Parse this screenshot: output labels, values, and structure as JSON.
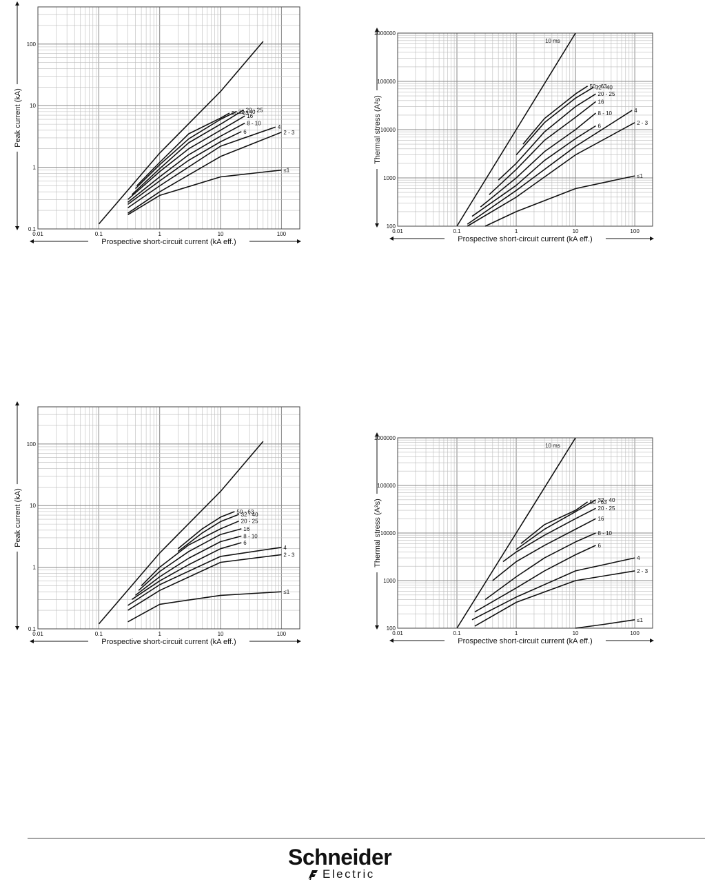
{
  "chart_data": [
    {
      "type": "line",
      "xscale": "log",
      "yscale": "log",
      "xlabel": "Prospective short-circuit current (kA eff.)",
      "ylabel": "Peak current (kA)",
      "xlim": [
        0.01,
        200
      ],
      "ylim": [
        0.1,
        400
      ],
      "xticks": [
        "0.01",
        "0.1",
        "1",
        "10",
        "100"
      ],
      "yticks": [
        "0.1",
        "1",
        "10",
        "100"
      ],
      "grid": true,
      "series": [
        {
          "name": "",
          "points": [
            [
              0.1,
              0.12
            ],
            [
              1,
              1.7
            ],
            [
              10,
              17
            ],
            [
              50,
              110
            ]
          ]
        },
        {
          "name": "50 - 63",
          "points": [
            [
              0.42,
              0.5
            ],
            [
              1,
              1.2
            ],
            [
              3,
              3.5
            ],
            [
              10,
              6.3
            ],
            [
              14,
              7.6
            ]
          ]
        },
        {
          "name": "32 - 40",
          "points": [
            [
              0.4,
              0.45
            ],
            [
              1,
              1.1
            ],
            [
              3,
              2.9
            ],
            [
              10,
              6
            ],
            [
              18,
              8
            ]
          ]
        },
        {
          "name": "20 - 25",
          "points": [
            [
              0.35,
              0.36
            ],
            [
              1,
              0.95
            ],
            [
              3,
              2.5
            ],
            [
              10,
              5
            ],
            [
              24,
              8.5
            ]
          ]
        },
        {
          "name": "16",
          "points": [
            [
              0.3,
              0.3
            ],
            [
              1,
              0.85
            ],
            [
              3,
              2
            ],
            [
              10,
              4
            ],
            [
              25,
              6.8
            ]
          ]
        },
        {
          "name": "8 - 10",
          "points": [
            [
              0.3,
              0.27
            ],
            [
              1,
              0.7
            ],
            [
              3,
              1.6
            ],
            [
              10,
              3.2
            ],
            [
              25,
              5.2
            ]
          ]
        },
        {
          "name": "6",
          "points": [
            [
              0.3,
              0.25
            ],
            [
              1,
              0.6
            ],
            [
              3,
              1.3
            ],
            [
              10,
              2.6
            ],
            [
              22,
              3.8
            ]
          ]
        },
        {
          "name": "4",
          "points": [
            [
              0.3,
              0.22
            ],
            [
              1,
              0.5
            ],
            [
              10,
              2.2
            ],
            [
              80,
              4.5
            ]
          ]
        },
        {
          "name": "2 - 3",
          "points": [
            [
              0.3,
              0.18
            ],
            [
              1,
              0.4
            ],
            [
              10,
              1.5
            ],
            [
              100,
              3.7
            ]
          ]
        },
        {
          "name": "≤1",
          "points": [
            [
              0.3,
              0.17
            ],
            [
              1,
              0.35
            ],
            [
              10,
              0.7
            ],
            [
              100,
              0.9
            ]
          ]
        }
      ]
    },
    {
      "type": "line",
      "xscale": "log",
      "yscale": "log",
      "xlabel": "Prospective short-circuit current (kA eff.)",
      "ylabel": "Thermal stress (A²s)",
      "xlim": [
        0.01,
        200
      ],
      "ylim": [
        100,
        1000000
      ],
      "xticks": [
        "0.01",
        "0.1",
        "1",
        "10",
        "100"
      ],
      "yticks": [
        "100",
        "1000",
        "10000",
        "100000",
        "1000000"
      ],
      "grid": true,
      "series": [
        {
          "name": "10 ms",
          "points": [
            [
              0.1,
              100
            ],
            [
              1,
              10000
            ],
            [
              10,
              1000000
            ]
          ]
        },
        {
          "name": "50 - 63",
          "points": [
            [
              1.3,
              5000
            ],
            [
              3,
              17000
            ],
            [
              10,
              55000
            ],
            [
              16,
              80000
            ]
          ]
        },
        {
          "name": "32 - 40",
          "points": [
            [
              1,
              3000
            ],
            [
              3,
              14000
            ],
            [
              10,
              45000
            ],
            [
              20,
              75000
            ]
          ]
        },
        {
          "name": "20 - 25",
          "points": [
            [
              0.5,
              900
            ],
            [
              1,
              2000
            ],
            [
              3,
              9000
            ],
            [
              10,
              30000
            ],
            [
              22,
              55000
            ]
          ]
        },
        {
          "name": "16",
          "points": [
            [
              0.35,
              450
            ],
            [
              1,
              1500
            ],
            [
              3,
              6000
            ],
            [
              10,
              18000
            ],
            [
              22,
              38000
            ]
          ]
        },
        {
          "name": "8 - 10",
          "points": [
            [
              0.25,
              250
            ],
            [
              1,
              1000
            ],
            [
              3,
              3500
            ],
            [
              10,
              10000
            ],
            [
              22,
              22000
            ]
          ]
        },
        {
          "name": "6",
          "points": [
            [
              0.18,
              160
            ],
            [
              1,
              700
            ],
            [
              3,
              2300
            ],
            [
              10,
              6500
            ],
            [
              22,
              12000
            ]
          ]
        },
        {
          "name": "4",
          "points": [
            [
              0.15,
              110
            ],
            [
              1,
              550
            ],
            [
              10,
              4500
            ],
            [
              90,
              25000
            ]
          ]
        },
        {
          "name": "2 - 3",
          "points": [
            [
              0.15,
              100
            ],
            [
              1,
              400
            ],
            [
              10,
              3000
            ],
            [
              100,
              14000
            ]
          ]
        },
        {
          "name": "≤1",
          "points": [
            [
              0.3,
              100
            ],
            [
              1,
              200
            ],
            [
              10,
              600
            ],
            [
              100,
              1100
            ]
          ]
        }
      ]
    },
    {
      "type": "line",
      "xscale": "log",
      "yscale": "log",
      "xlabel": "Prospective short-circuit current (kA eff.)",
      "ylabel": "Peak current (kA)",
      "xlim": [
        0.01,
        200
      ],
      "ylim": [
        0.1,
        400
      ],
      "xticks": [
        "0.01",
        "0.1",
        "1",
        "10",
        "100"
      ],
      "yticks": [
        "0.1",
        "1",
        "10",
        "100"
      ],
      "grid": true,
      "series": [
        {
          "name": "",
          "points": [
            [
              0.1,
              0.12
            ],
            [
              1,
              1.7
            ],
            [
              10,
              17
            ],
            [
              50,
              110
            ]
          ]
        },
        {
          "name": "50 - 63",
          "points": [
            [
              2,
              2
            ],
            [
              5,
              4.2
            ],
            [
              10,
              6.5
            ],
            [
              17,
              8
            ]
          ]
        },
        {
          "name": "32 - 40",
          "points": [
            [
              2,
              1.8
            ],
            [
              5,
              3.6
            ],
            [
              10,
              5.5
            ],
            [
              20,
              7.2
            ]
          ]
        },
        {
          "name": "20 - 25",
          "points": [
            [
              0.5,
              0.5
            ],
            [
              1,
              1
            ],
            [
              3,
              2.3
            ],
            [
              10,
              4.2
            ],
            [
              20,
              5.6
            ]
          ]
        },
        {
          "name": "16",
          "points": [
            [
              0.45,
              0.42
            ],
            [
              1,
              0.85
            ],
            [
              3,
              1.8
            ],
            [
              10,
              3.4
            ],
            [
              22,
              4.2
            ]
          ]
        },
        {
          "name": "8 - 10",
          "points": [
            [
              0.4,
              0.35
            ],
            [
              1,
              0.7
            ],
            [
              3,
              1.4
            ],
            [
              10,
              2.6
            ],
            [
              22,
              3.2
            ]
          ]
        },
        {
          "name": "6",
          "points": [
            [
              0.35,
              0.3
            ],
            [
              1,
              0.6
            ],
            [
              3,
              1.1
            ],
            [
              10,
              2
            ],
            [
              22,
              2.5
            ]
          ]
        },
        {
          "name": "4",
          "points": [
            [
              0.3,
              0.24
            ],
            [
              1,
              0.52
            ],
            [
              10,
              1.5
            ],
            [
              100,
              2.1
            ]
          ]
        },
        {
          "name": "2 - 3",
          "points": [
            [
              0.3,
              0.2
            ],
            [
              1,
              0.42
            ],
            [
              10,
              1.2
            ],
            [
              100,
              1.6
            ]
          ]
        },
        {
          "name": "≤1",
          "points": [
            [
              0.3,
              0.13
            ],
            [
              1,
              0.25
            ],
            [
              10,
              0.35
            ],
            [
              100,
              0.4
            ]
          ]
        }
      ]
    },
    {
      "type": "line",
      "xscale": "log",
      "yscale": "log",
      "xlabel": "Prospective short-circuit current (kA eff.)",
      "ylabel": "Thermal stress (A²s)",
      "xlim": [
        0.01,
        200
      ],
      "ylim": [
        100,
        1000000
      ],
      "xticks": [
        "0.01",
        "0.1",
        "1",
        "10",
        "100"
      ],
      "yticks": [
        "100",
        "1000",
        "10000",
        "100000",
        "1000000"
      ],
      "grid": true,
      "series": [
        {
          "name": "10 ms",
          "points": [
            [
              0.1,
              100
            ],
            [
              1,
              10000
            ],
            [
              10,
              1000000
            ]
          ]
        },
        {
          "name": "50 - 63",
          "points": [
            [
              1.2,
              6000
            ],
            [
              3,
              15000
            ],
            [
              10,
              30000
            ],
            [
              16,
              45000
            ]
          ]
        },
        {
          "name": "32 - 40",
          "points": [
            [
              1,
              4500
            ],
            [
              3,
              12000
            ],
            [
              10,
              28000
            ],
            [
              22,
              50000
            ]
          ]
        },
        {
          "name": "20 - 25",
          "points": [
            [
              0.6,
              2500
            ],
            [
              1,
              4000
            ],
            [
              3,
              9000
            ],
            [
              10,
              20000
            ],
            [
              22,
              33000
            ]
          ]
        },
        {
          "name": "16",
          "points": [
            [
              0.4,
              1000
            ],
            [
              1,
              2500
            ],
            [
              3,
              5500
            ],
            [
              10,
              12000
            ],
            [
              22,
              20000
            ]
          ]
        },
        {
          "name": "8 - 10",
          "points": [
            [
              0.3,
              400
            ],
            [
              1,
              1200
            ],
            [
              3,
              3000
            ],
            [
              10,
              6500
            ],
            [
              22,
              10000
            ]
          ]
        },
        {
          "name": "6",
          "points": [
            [
              0.2,
              220
            ],
            [
              1,
              700
            ],
            [
              3,
              1600
            ],
            [
              10,
              3500
            ],
            [
              22,
              5500
            ]
          ]
        },
        {
          "name": "4",
          "points": [
            [
              0.18,
              150
            ],
            [
              1,
              450
            ],
            [
              10,
              1600
            ],
            [
              100,
              3000
            ]
          ]
        },
        {
          "name": "2 - 3",
          "points": [
            [
              0.2,
              110
            ],
            [
              1,
              350
            ],
            [
              10,
              1000
            ],
            [
              100,
              1600
            ]
          ]
        },
        {
          "name": "≤1",
          "points": [
            [
              10,
              100
            ],
            [
              30,
              120
            ],
            [
              100,
              150
            ]
          ]
        }
      ]
    }
  ],
  "footer": {
    "brand_name": "Schneider",
    "brand_sub": "Electric"
  }
}
